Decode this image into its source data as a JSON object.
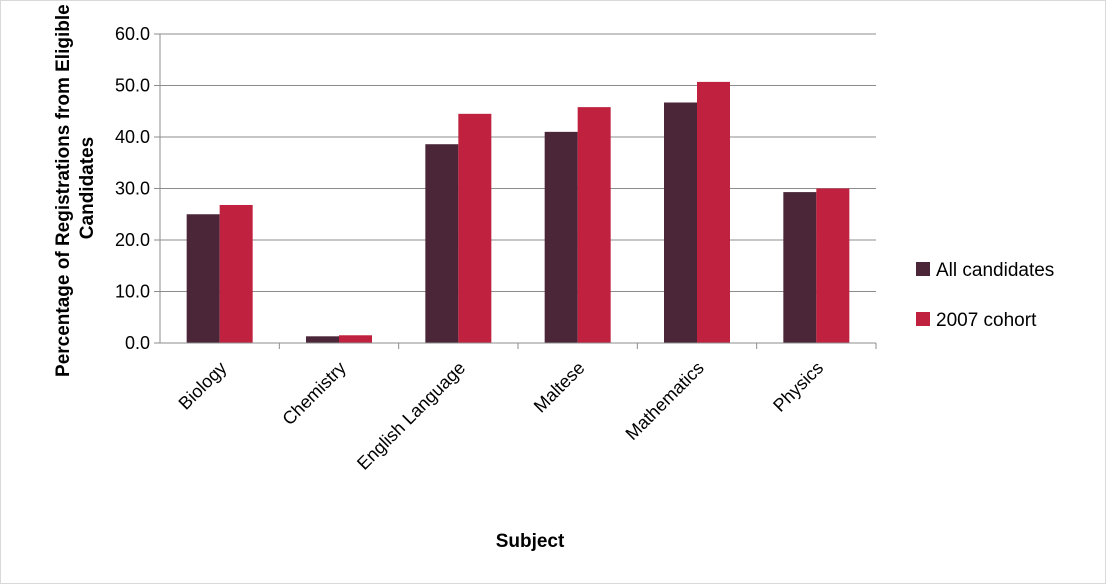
{
  "chart_data": {
    "type": "bar",
    "title": "",
    "xlabel": "Subject",
    "ylabel_lines": [
      "Percentage of Registrations from Eligible",
      "Candidates"
    ],
    "categories": [
      "Biology",
      "Chemistry",
      "English Language",
      "Maltese",
      "Mathematics",
      "Physics"
    ],
    "series": [
      {
        "name": "All candidates",
        "color": "#4a2638",
        "values": [
          25.0,
          1.3,
          38.6,
          41.0,
          46.7,
          29.3
        ]
      },
      {
        "name": "2007 cohort",
        "color": "#c0213f",
        "values": [
          26.8,
          1.5,
          44.5,
          45.8,
          50.7,
          30.0
        ]
      }
    ],
    "ylim": [
      0,
      60
    ],
    "yticks": [
      "0.0",
      "10.0",
      "20.0",
      "30.0",
      "40.0",
      "50.0",
      "60.0"
    ],
    "grid": true,
    "legend_position": "right"
  }
}
